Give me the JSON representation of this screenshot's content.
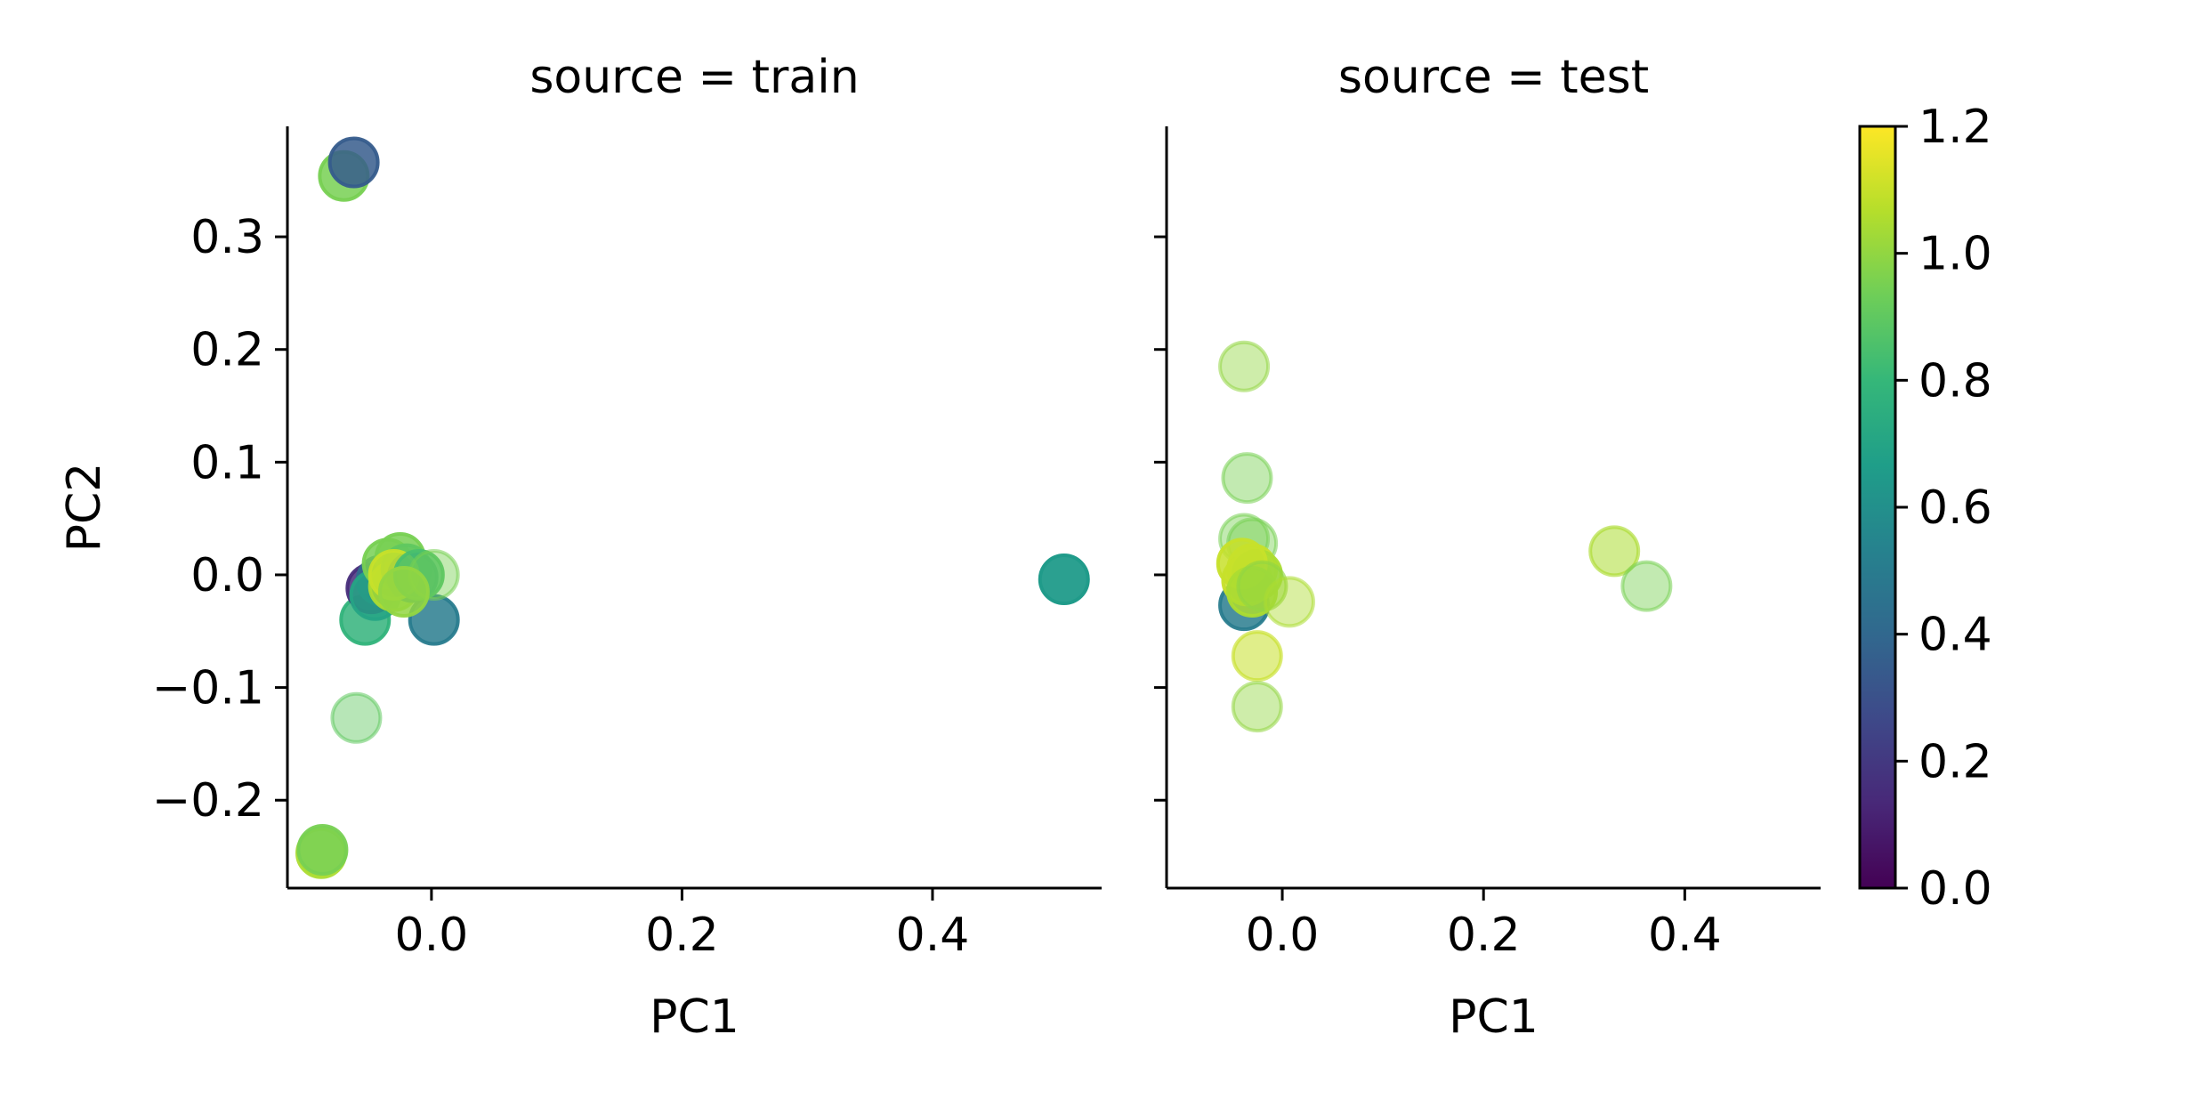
{
  "chart_data": {
    "type": "scatter",
    "facet_variable": "source",
    "panel_titles": [
      "source = train",
      "source = test"
    ],
    "xlabel": "PC1",
    "ylabel": "PC2",
    "xlim": [
      -0.115,
      0.535
    ],
    "ylim": [
      -0.278,
      0.398
    ],
    "xticks": [
      0.0,
      0.2,
      0.4
    ],
    "yticks": [
      -0.2,
      -0.1,
      0.0,
      0.1,
      0.2,
      0.3
    ],
    "xtick_labels": [
      "0.0",
      "0.2",
      "0.4"
    ],
    "ytick_labels": [
      "−0.2",
      "−0.1",
      "0.0",
      "0.1",
      "0.2",
      "0.3"
    ],
    "shared_y": true,
    "grid": false,
    "colormap": "viridis",
    "colorbar": {
      "min": 0.0,
      "max": 1.2,
      "ticks": [
        0.0,
        0.2,
        0.4,
        0.6,
        0.8,
        1.0,
        1.2
      ],
      "tick_labels": [
        "0.0",
        "0.2",
        "0.4",
        "0.6",
        "0.8",
        "1.0",
        "1.2"
      ],
      "stops": [
        "#440154",
        "#482878",
        "#3e4989",
        "#31688e",
        "#26828e",
        "#1f9e89",
        "#35b779",
        "#6ece58",
        "#b5de2b",
        "#fde725"
      ]
    },
    "panels": [
      {
        "source": "train",
        "points": [
          {
            "x": -0.07,
            "y": 0.354,
            "c": 0.95,
            "alpha": 0.85
          },
          {
            "x": -0.062,
            "y": 0.366,
            "c": 0.35,
            "alpha": 0.85
          },
          {
            "x": -0.06,
            "y": -0.127,
            "c": 0.9,
            "alpha": 0.45
          },
          {
            "x": -0.088,
            "y": -0.247,
            "c": 1.05,
            "alpha": 0.85
          },
          {
            "x": -0.087,
            "y": -0.244,
            "c": 0.95,
            "alpha": 0.85
          },
          {
            "x": -0.053,
            "y": -0.04,
            "c": 0.78,
            "alpha": 0.85
          },
          {
            "x": 0.002,
            "y": -0.04,
            "c": 0.5,
            "alpha": 0.85
          },
          {
            "x": -0.048,
            "y": -0.012,
            "c": 0.15,
            "alpha": 0.85
          },
          {
            "x": -0.04,
            "y": -0.005,
            "c": 0.4,
            "alpha": 0.85
          },
          {
            "x": -0.045,
            "y": -0.018,
            "c": 0.7,
            "alpha": 0.85
          },
          {
            "x": -0.035,
            "y": 0.01,
            "c": 0.95,
            "alpha": 0.85
          },
          {
            "x": -0.025,
            "y": 0.015,
            "c": 0.95,
            "alpha": 0.85
          },
          {
            "x": -0.03,
            "y": -0.01,
            "c": 1.05,
            "alpha": 0.85
          },
          {
            "x": -0.02,
            "y": 0.005,
            "c": 0.9,
            "alpha": 0.85
          },
          {
            "x": -0.015,
            "y": -0.002,
            "c": 0.6,
            "alpha": 0.85
          },
          {
            "x": -0.03,
            "y": 0.0,
            "c": 1.1,
            "alpha": 0.85
          },
          {
            "x": -0.01,
            "y": 0.0,
            "c": 0.85,
            "alpha": 0.85
          },
          {
            "x": 0.002,
            "y": 0.0,
            "c": 0.95,
            "alpha": 0.45
          },
          {
            "x": -0.022,
            "y": -0.015,
            "c": 1.0,
            "alpha": 0.85
          },
          {
            "x": 0.505,
            "y": -0.004,
            "c": 0.65,
            "alpha": 0.95
          }
        ]
      },
      {
        "source": "test",
        "points": [
          {
            "x": -0.038,
            "y": 0.185,
            "c": 1.0,
            "alpha": 0.45
          },
          {
            "x": -0.035,
            "y": 0.086,
            "c": 0.95,
            "alpha": 0.45
          },
          {
            "x": -0.038,
            "y": 0.032,
            "c": 0.95,
            "alpha": 0.45
          },
          {
            "x": -0.03,
            "y": 0.028,
            "c": 0.95,
            "alpha": 0.45
          },
          {
            "x": -0.038,
            "y": -0.027,
            "c": 0.5,
            "alpha": 0.85
          },
          {
            "x": -0.035,
            "y": -0.005,
            "c": 1.1,
            "alpha": 0.85
          },
          {
            "x": -0.03,
            "y": 0.005,
            "c": 1.1,
            "alpha": 0.85
          },
          {
            "x": -0.025,
            "y": 0.0,
            "c": 1.05,
            "alpha": 0.85
          },
          {
            "x": -0.04,
            "y": 0.01,
            "c": 1.1,
            "alpha": 0.85
          },
          {
            "x": -0.03,
            "y": -0.015,
            "c": 1.05,
            "alpha": 0.85
          },
          {
            "x": -0.02,
            "y": -0.01,
            "c": 1.0,
            "alpha": 0.55
          },
          {
            "x": 0.007,
            "y": -0.024,
            "c": 1.05,
            "alpha": 0.45
          },
          {
            "x": -0.025,
            "y": -0.072,
            "c": 1.1,
            "alpha": 0.55
          },
          {
            "x": -0.025,
            "y": -0.117,
            "c": 1.0,
            "alpha": 0.45
          },
          {
            "x": 0.33,
            "y": 0.021,
            "c": 1.05,
            "alpha": 0.55
          },
          {
            "x": 0.362,
            "y": -0.01,
            "c": 0.95,
            "alpha": 0.45
          }
        ]
      }
    ]
  }
}
